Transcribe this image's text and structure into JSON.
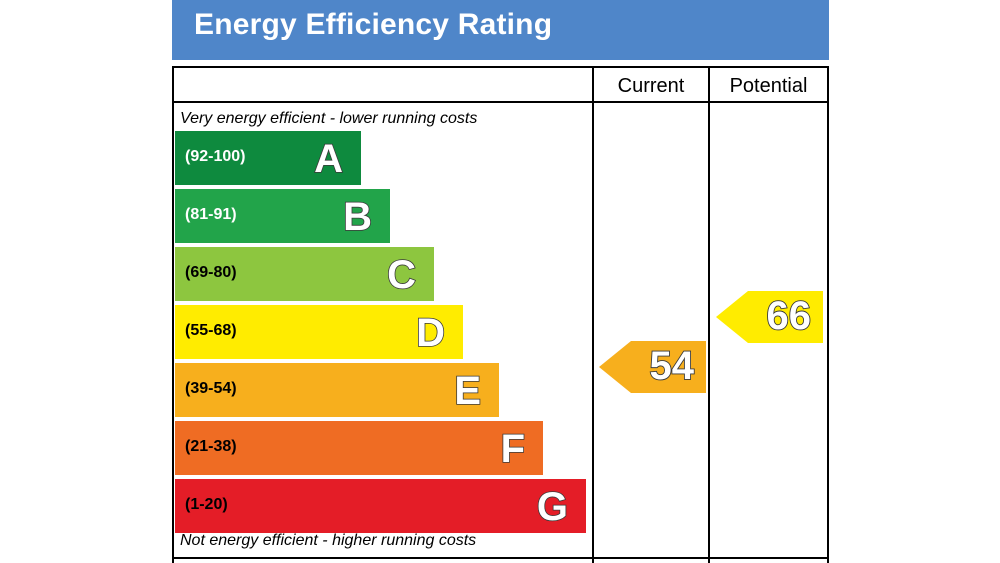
{
  "header": {
    "title": "Energy Efficiency Rating"
  },
  "columns": {
    "current": "Current",
    "potential": "Potential"
  },
  "captions": {
    "top": "Very energy efficient - lower running costs",
    "bottom": "Not energy efficient - higher running costs"
  },
  "chart_data": {
    "type": "bar",
    "title": "Energy Efficiency Rating",
    "orientation": "horizontal",
    "categories": [
      "A",
      "B",
      "C",
      "D",
      "E",
      "F",
      "G"
    ],
    "bands": [
      {
        "letter": "A",
        "range": "(92-100)",
        "color": "#0e8a3e",
        "text_color": "#ffffff"
      },
      {
        "letter": "B",
        "range": "(81-91)",
        "color": "#22a44a",
        "text_color": "#ffffff"
      },
      {
        "letter": "C",
        "range": "(69-80)",
        "color": "#8dc63f",
        "text_color": "#000000"
      },
      {
        "letter": "D",
        "range": "(55-68)",
        "color": "#ffec00",
        "text_color": "#000000"
      },
      {
        "letter": "E",
        "range": "(39-54)",
        "color": "#f7af1d",
        "text_color": "#000000"
      },
      {
        "letter": "F",
        "range": "(21-38)",
        "color": "#ef6c23",
        "text_color": "#000000"
      },
      {
        "letter": "G",
        "range": "(1-20)",
        "color": "#e41d27",
        "text_color": "#000000"
      }
    ],
    "ratings": {
      "current": {
        "value": 54,
        "label": "54",
        "band": "E",
        "color": "#f7af1d"
      },
      "potential": {
        "value": 66,
        "label": "66",
        "band": "D",
        "color": "#ffec00"
      }
    }
  }
}
